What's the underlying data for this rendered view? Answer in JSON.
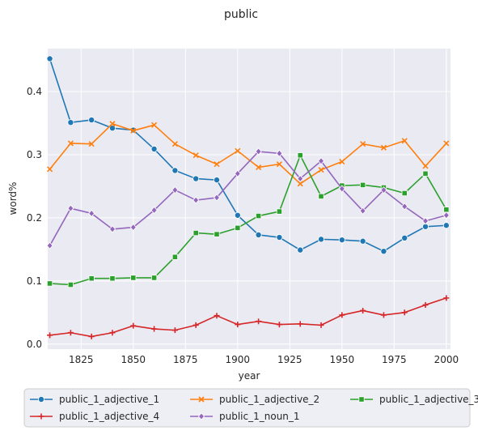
{
  "chart_data": {
    "type": "line",
    "title": "public",
    "xlabel": "year",
    "ylabel": "word%",
    "xlim": [
      1809,
      2002
    ],
    "ylim": [
      -0.008,
      0.468
    ],
    "xticks": [
      1825,
      1850,
      1875,
      1900,
      1925,
      1950,
      1975,
      2000
    ],
    "xtick_labels": [
      "1825",
      "1850",
      "1875",
      "1900",
      "1925",
      "1950",
      "1975",
      "2000"
    ],
    "yticks": [
      0.0,
      0.1,
      0.2,
      0.3,
      0.4
    ],
    "ytick_labels": [
      "0.0",
      "0.1",
      "0.2",
      "0.3",
      "0.4"
    ],
    "grid": true,
    "legend_position": "bottom",
    "x": [
      1810,
      1820,
      1830,
      1840,
      1850,
      1860,
      1870,
      1880,
      1890,
      1900,
      1910,
      1920,
      1930,
      1940,
      1950,
      1960,
      1970,
      1980,
      1990,
      2000
    ],
    "series": [
      {
        "name": "public_1_adjective_1",
        "color": "#1f77b4",
        "marker": "circle",
        "values": [
          0.452,
          0.351,
          0.355,
          0.342,
          0.339,
          0.309,
          0.275,
          0.262,
          0.26,
          0.204,
          0.173,
          0.169,
          0.149,
          0.166,
          0.165,
          0.163,
          0.147,
          0.168,
          0.186,
          0.188
        ]
      },
      {
        "name": "public_1_adjective_2",
        "color": "#ff7f0e",
        "marker": "x",
        "values": [
          0.277,
          0.318,
          0.317,
          0.349,
          0.338,
          0.347,
          0.317,
          0.299,
          0.285,
          0.306,
          0.28,
          0.285,
          0.254,
          0.276,
          0.289,
          0.317,
          0.311,
          0.322,
          0.282,
          0.318
        ]
      },
      {
        "name": "public_1_adjective_3",
        "color": "#2ca02c",
        "marker": "square",
        "values": [
          0.096,
          0.094,
          0.104,
          0.104,
          0.105,
          0.105,
          0.138,
          0.176,
          0.174,
          0.184,
          0.203,
          0.21,
          0.299,
          0.234,
          0.251,
          0.252,
          0.248,
          0.239,
          0.27,
          0.213
        ]
      },
      {
        "name": "public_1_adjective_4",
        "color": "#d62728",
        "marker": "plus",
        "values": [
          0.014,
          0.018,
          0.012,
          0.018,
          0.029,
          0.024,
          0.022,
          0.03,
          0.045,
          0.031,
          0.036,
          0.031,
          0.032,
          0.03,
          0.046,
          0.053,
          0.046,
          0.05,
          0.062,
          0.073
        ]
      },
      {
        "name": "public_1_noun_1",
        "color": "#9467bd",
        "marker": "diamond",
        "values": [
          0.156,
          0.215,
          0.207,
          0.182,
          0.185,
          0.212,
          0.244,
          0.228,
          0.232,
          0.27,
          0.305,
          0.302,
          0.262,
          0.29,
          0.246,
          0.211,
          0.244,
          0.218,
          0.195,
          0.204
        ]
      }
    ]
  }
}
